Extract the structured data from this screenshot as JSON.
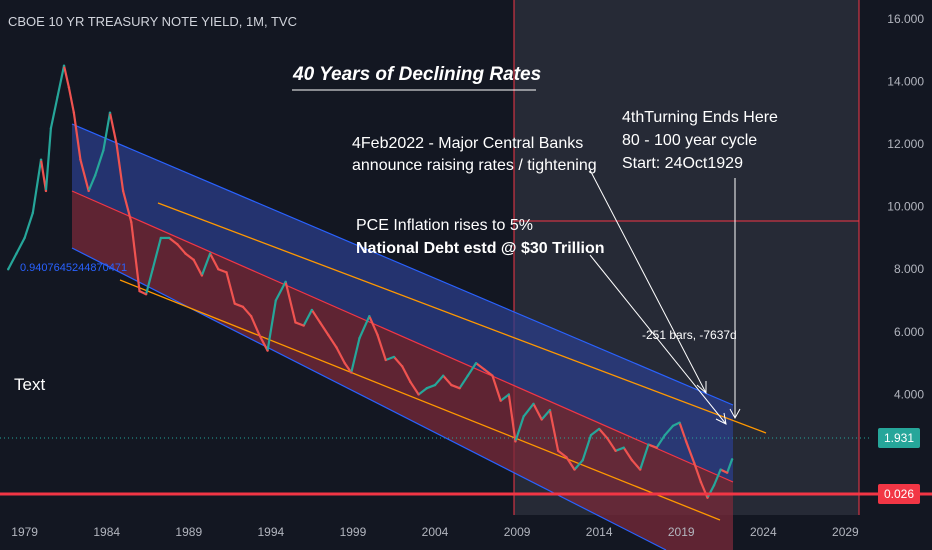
{
  "header": {
    "symbol_title": "CBOE 10 YR TREASURY NOTE YIELD, 1M, TVC"
  },
  "chart_data": {
    "type": "line",
    "title": "40 Years of Declining Rates",
    "x_axis": {
      "tick_labels": [
        "1979",
        "1984",
        "1989",
        "1994",
        "1999",
        "2004",
        "2009",
        "2014",
        "2019",
        "2024",
        "2029"
      ],
      "range": [
        1977.5,
        2030.5
      ]
    },
    "y_axis": {
      "tick_labels": [
        "4.000",
        "6.000",
        "8.000",
        "10.000",
        "12.000",
        "14.000",
        "16.000"
      ],
      "tick_values": [
        4,
        6,
        8,
        10,
        12,
        14,
        16
      ],
      "range": [
        0.15,
        16.6
      ]
    },
    "series": [
      {
        "values_note_x": "year",
        "x": [
          1978.0,
          1978.5,
          1979.0,
          1979.5,
          1980.0,
          1980.3,
          1980.6,
          1981.0,
          1981.4,
          1981.7,
          1982.0,
          1982.4,
          1982.9,
          1983.3,
          1983.8,
          1984.2,
          1984.6,
          1985.0,
          1985.5,
          1986.0,
          1986.4,
          1986.8,
          1987.3,
          1987.8,
          1988.3,
          1988.8,
          1989.3,
          1989.8,
          1990.3,
          1990.8,
          1991.3,
          1991.8,
          1992.3,
          1992.8,
          1993.3,
          1993.8,
          1994.3,
          1994.9,
          1995.5,
          1996.0,
          1996.5,
          1997.0,
          1997.5,
          1998.0,
          1998.5,
          1998.9,
          1999.4,
          2000.0,
          2000.5,
          2001.0,
          2001.5,
          2002.0,
          2002.5,
          2003.0,
          2003.5,
          2004.0,
          2004.5,
          2005.0,
          2005.5,
          2006.0,
          2006.5,
          2007.0,
          2007.5,
          2008.0,
          2008.5,
          2008.9,
          2009.4,
          2010.0,
          2010.5,
          2011.0,
          2011.5,
          2012.0,
          2012.5,
          2013.0,
          2013.5,
          2014.0,
          2014.5,
          2015.0,
          2015.5,
          2016.0,
          2016.5,
          2017.0,
          2017.5,
          2018.0,
          2018.5,
          2018.9,
          2019.3,
          2019.8,
          2020.2,
          2020.6,
          2021.0,
          2021.4,
          2021.8,
          2022.1
        ],
        "values": [
          8.0,
          8.5,
          9.0,
          9.8,
          11.5,
          10.5,
          12.5,
          13.5,
          14.5,
          13.8,
          13.0,
          11.5,
          10.5,
          11.0,
          11.8,
          13.0,
          12.0,
          10.5,
          9.5,
          7.3,
          7.2,
          8.0,
          9.0,
          9.0,
          8.8,
          8.5,
          8.3,
          7.8,
          8.5,
          8.0,
          7.9,
          6.9,
          6.8,
          6.5,
          5.9,
          5.4,
          7.0,
          7.6,
          6.3,
          6.2,
          6.7,
          6.3,
          5.9,
          5.5,
          5.0,
          4.7,
          5.8,
          6.5,
          5.9,
          5.1,
          5.2,
          4.9,
          4.4,
          4.0,
          4.2,
          4.3,
          4.6,
          4.3,
          4.2,
          4.6,
          5.0,
          4.8,
          4.6,
          3.8,
          4.0,
          2.5,
          3.3,
          3.7,
          3.2,
          3.5,
          2.2,
          2.0,
          1.6,
          1.9,
          2.7,
          2.9,
          2.6,
          2.2,
          2.3,
          1.9,
          1.6,
          2.4,
          2.3,
          2.7,
          3.0,
          3.1,
          2.5,
          1.8,
          1.2,
          0.7,
          1.1,
          1.6,
          1.5,
          1.93
        ]
      }
    ],
    "last_value_label": "1.931",
    "horizontal_line_label": "0.026",
    "annotations": {
      "channel_label": "0.9407645244870471",
      "text_marker": "Text",
      "central_banks_line1": "4Feb2022 - Major Central Banks",
      "central_banks_line2": "announce raising rates / tightening",
      "pce_line1": "PCE Inflation rises to 5%",
      "pce_line2": "National Debt estd @ $30 Trillion",
      "turning_line1": "4thTurning Ends Here",
      "turning_line2": "80 - 100  year cycle",
      "turning_line3": "Start: 24Oct1929",
      "measure": "-251 bars, -7637d"
    },
    "legend": "none",
    "grid": false,
    "colors": {
      "background": "#131722",
      "up_candle": "#26a69a",
      "down_candle": "#ef5350",
      "channel_upper_fill": "#2b3d8a",
      "channel_lower_fill": "#7a2a3a",
      "channel_line": "#2962ff",
      "orange_line": "#ff9800",
      "red_level": "#f23645",
      "shade_zone": "#2a2e39",
      "text": "#d1d4dc"
    }
  }
}
